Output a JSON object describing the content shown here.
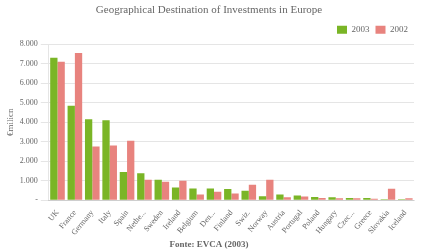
{
  "chart_data": {
    "type": "bar",
    "title": "Geographical Destination of Investments in Europe",
    "ylabel": "€milicn",
    "annotations": [
      "Fonte: EVCA (2003)"
    ],
    "categories": [
      "UK",
      "France",
      "Germany",
      "Italy",
      "Spain",
      "Nethe...",
      "Sweden",
      "Ireland",
      "Belgium",
      "Den...",
      "Finland",
      "Swiz.",
      "Norway",
      "Austria",
      "Portugal",
      "Poland",
      "Hungary",
      "Czec...",
      "Greece",
      "Slovakia",
      "Iceland"
    ],
    "series": [
      {
        "name": "2003",
        "color": "#7ab526",
        "values": [
          7300,
          4850,
          4150,
          4100,
          1450,
          1380,
          1050,
          650,
          600,
          600,
          580,
          490,
          200,
          290,
          240,
          170,
          150,
          120,
          115,
          50,
          45
        ]
      },
      {
        "name": "2002",
        "color": "#e8837e",
        "values": [
          7100,
          7550,
          2750,
          2800,
          3050,
          1050,
          950,
          1000,
          290,
          440,
          340,
          790,
          1050,
          150,
          195,
          120,
          95,
          95,
          75,
          590,
          95
        ]
      }
    ],
    "ylim": [
      0,
      8000
    ],
    "yticks": [
      {
        "value": 0,
        "label": "-"
      },
      {
        "value": 1000,
        "label": "1.000"
      },
      {
        "value": 2000,
        "label": "2.000"
      },
      {
        "value": 3000,
        "label": "3.000"
      },
      {
        "value": 4000,
        "label": "4.000"
      },
      {
        "value": 5000,
        "label": "5.000"
      },
      {
        "value": 6000,
        "label": "6.000"
      },
      {
        "value": 7000,
        "label": "7.000"
      },
      {
        "value": 8000,
        "label": "8.000"
      }
    ],
    "grid": true,
    "legend": "upper right"
  }
}
